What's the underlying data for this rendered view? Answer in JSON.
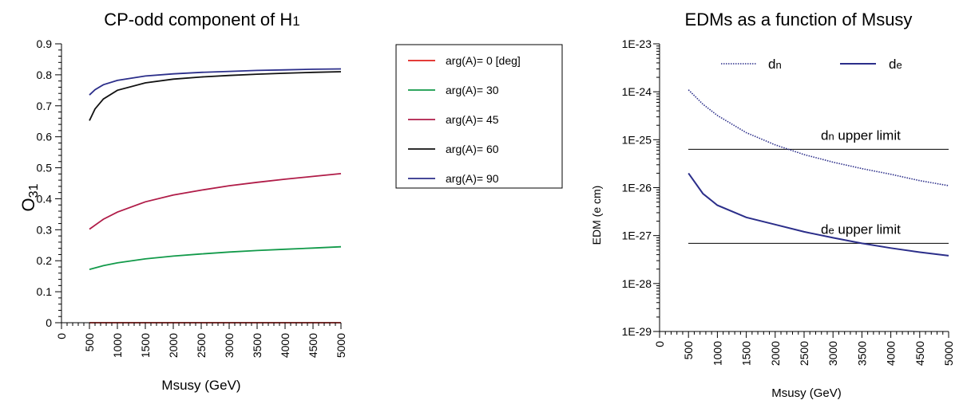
{
  "colors": {
    "red": "#e0201c",
    "green": "#129a4a",
    "crimson": "#b01c48",
    "black": "#111111",
    "navy": "#2b2e8a"
  },
  "left_legend_labels": [
    "arg(A)= 0 [deg]",
    "arg(A)= 30",
    "arg(A)= 45",
    "arg(A)= 60",
    "arg(A)= 90"
  ],
  "chart_data": [
    {
      "type": "line",
      "title": {
        "main": "CP-odd component of H",
        "sub": "1"
      },
      "xlabel": "Msusy (GeV)",
      "ylabel": {
        "main": "O",
        "sub": "31"
      },
      "xlim": [
        0,
        5000
      ],
      "ylim": [
        0,
        0.9
      ],
      "xticks": [
        "0",
        "500",
        "1000",
        "1500",
        "2000",
        "2500",
        "3000",
        "3500",
        "4000",
        "4500",
        "5000"
      ],
      "yticks": [
        "0",
        "0.1",
        "0.2",
        "0.3",
        "0.4",
        "0.5",
        "0.6",
        "0.7",
        "0.8",
        "0.9"
      ],
      "grid": false,
      "legend_position": "right",
      "series": [
        {
          "name": "arg(A)= 0 [deg]",
          "color": "red",
          "x": [
            500,
            1000,
            1500,
            2000,
            2500,
            3000,
            3500,
            4000,
            4500,
            5000
          ],
          "y": [
            0,
            0,
            0,
            0,
            0,
            0,
            0,
            0,
            0,
            0
          ]
        },
        {
          "name": "arg(A)= 30",
          "color": "green",
          "x": [
            500,
            750,
            1000,
            1500,
            2000,
            2500,
            3000,
            3500,
            4000,
            4500,
            5000
          ],
          "y": [
            0.172,
            0.184,
            0.193,
            0.206,
            0.215,
            0.222,
            0.228,
            0.233,
            0.237,
            0.241,
            0.245
          ]
        },
        {
          "name": "arg(A)= 45",
          "color": "crimson",
          "x": [
            500,
            750,
            1000,
            1500,
            2000,
            2500,
            3000,
            3500,
            4000,
            4500,
            5000
          ],
          "y": [
            0.302,
            0.334,
            0.357,
            0.39,
            0.412,
            0.428,
            0.442,
            0.453,
            0.463,
            0.472,
            0.481
          ]
        },
        {
          "name": "arg(A)= 60",
          "color": "black",
          "x": [
            500,
            600,
            750,
            1000,
            1500,
            2000,
            2500,
            3000,
            3500,
            4000,
            4500,
            5000
          ],
          "y": [
            0.652,
            0.69,
            0.722,
            0.75,
            0.774,
            0.786,
            0.793,
            0.798,
            0.802,
            0.805,
            0.808,
            0.81
          ]
        },
        {
          "name": "arg(A)= 90",
          "color": "navy",
          "x": [
            500,
            600,
            750,
            1000,
            1500,
            2000,
            2500,
            3000,
            3500,
            4000,
            4500,
            5000
          ],
          "y": [
            0.735,
            0.752,
            0.768,
            0.782,
            0.796,
            0.803,
            0.808,
            0.811,
            0.814,
            0.816,
            0.818,
            0.819
          ]
        }
      ]
    },
    {
      "type": "line",
      "title": "EDMs as a function of Msusy",
      "xlabel": "Msusy (GeV)",
      "ylabel": "EDM (e cm)",
      "yscale": "log",
      "xlim": [
        0,
        5000
      ],
      "ylim": [
        1e-29,
        1e-23
      ],
      "xticks": [
        "0",
        "500",
        "1000",
        "1500",
        "2000",
        "2500",
        "3000",
        "3500",
        "4000",
        "4500",
        "5000"
      ],
      "yticks": [
        "1E-29",
        "1E-28",
        "1E-27",
        "1E-26",
        "1E-25",
        "1E-24",
        "1E-23"
      ],
      "grid": false,
      "legend_position": "top",
      "legend": [
        {
          "main": "d",
          "sub": "n",
          "style": "dotted",
          "color": "navy"
        },
        {
          "main": "d",
          "sub": "e",
          "style": "solid",
          "color": "navy"
        }
      ],
      "series": [
        {
          "name": "dn",
          "color": "navy",
          "style": "dotted",
          "x": [
            500,
            750,
            1000,
            1500,
            2000,
            2500,
            3000,
            3500,
            4000,
            4500,
            5000
          ],
          "y": [
            1.1e-24,
            5.5e-25,
            3.2e-25,
            1.4e-25,
            7.8e-26,
            4.9e-26,
            3.4e-26,
            2.5e-26,
            1.9e-26,
            1.4e-26,
            1.1e-26
          ]
        },
        {
          "name": "de",
          "color": "navy",
          "style": "solid",
          "x": [
            500,
            750,
            1000,
            1500,
            2000,
            2500,
            3000,
            3500,
            4000,
            4500,
            5000
          ],
          "y": [
            2e-26,
            7.5e-27,
            4.3e-27,
            2.4e-27,
            1.7e-27,
            1.2e-27,
            9e-28,
            6.9e-28,
            5.5e-28,
            4.5e-28,
            3.8e-28
          ]
        }
      ],
      "reference_lines": [
        {
          "y": 6.3e-26,
          "label_main": "d",
          "label_sub": "n",
          "label_rest": " upper limit"
        },
        {
          "y": 6.9e-28,
          "label_main": "d",
          "label_sub": "e",
          "label_rest": " upper limit"
        }
      ]
    }
  ]
}
